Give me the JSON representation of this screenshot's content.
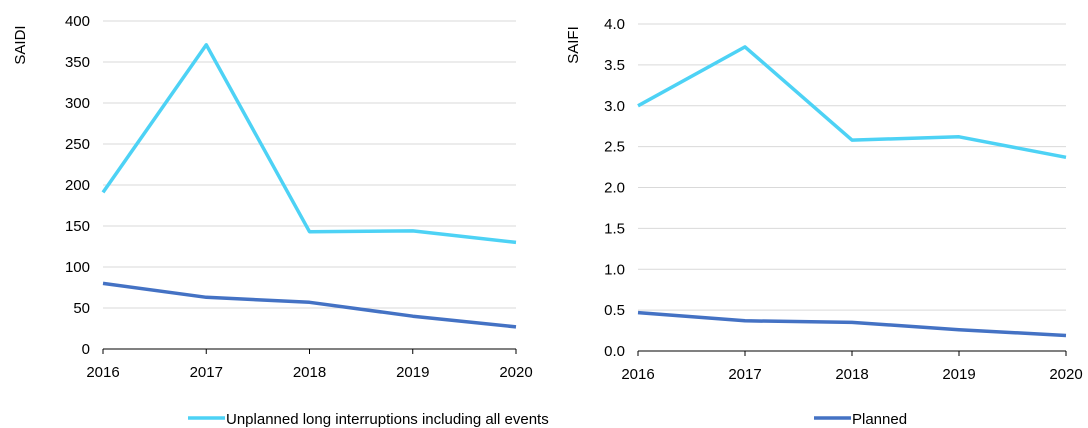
{
  "colors": {
    "unplanned": "#4dd2f5",
    "planned": "#4472c4",
    "grid": "#d9d9d9",
    "axis": "#000000"
  },
  "legend": {
    "placement": "bottom",
    "items": [
      {
        "label": "Unplanned long interruptions including all events",
        "color_key": "unplanned"
      },
      {
        "label": "Planned",
        "color_key": "planned"
      }
    ]
  },
  "chart_data": [
    {
      "type": "line",
      "categories": [
        "2016",
        "2017",
        "2018",
        "2019",
        "2020"
      ],
      "ylabel": "SAIDI",
      "xlabel": "",
      "title": "",
      "ylim": [
        0,
        400
      ],
      "y_ticks": [
        "0",
        "50",
        "100",
        "150",
        "200",
        "250",
        "300",
        "350",
        "400"
      ],
      "y_tick_values": [
        0,
        50,
        100,
        150,
        200,
        250,
        300,
        350,
        400
      ],
      "grid": true,
      "series": [
        {
          "name": "Unplanned long interruptions including all events",
          "color_key": "unplanned",
          "values": [
            191,
            371,
            143,
            144,
            130
          ]
        },
        {
          "name": "Planned",
          "color_key": "planned",
          "values": [
            80,
            63,
            57,
            40,
            27
          ]
        }
      ]
    },
    {
      "type": "line",
      "categories": [
        "2016",
        "2017",
        "2018",
        "2019",
        "2020"
      ],
      "ylabel": "SAIFI",
      "xlabel": "",
      "title": "",
      "ylim": [
        0,
        4.0
      ],
      "y_ticks": [
        "0.0",
        "0.5",
        "1.0",
        "1.5",
        "2.0",
        "2.5",
        "3.0",
        "3.5",
        "4.0"
      ],
      "y_tick_values": [
        0,
        0.5,
        1.0,
        1.5,
        2.0,
        2.5,
        3.0,
        3.5,
        4.0
      ],
      "grid": true,
      "series": [
        {
          "name": "Unplanned long interruptions including all events",
          "color_key": "unplanned",
          "values": [
            3.0,
            3.72,
            2.58,
            2.62,
            2.37
          ]
        },
        {
          "name": "Planned",
          "color_key": "planned",
          "values": [
            0.47,
            0.37,
            0.35,
            0.26,
            0.19
          ]
        }
      ]
    }
  ]
}
